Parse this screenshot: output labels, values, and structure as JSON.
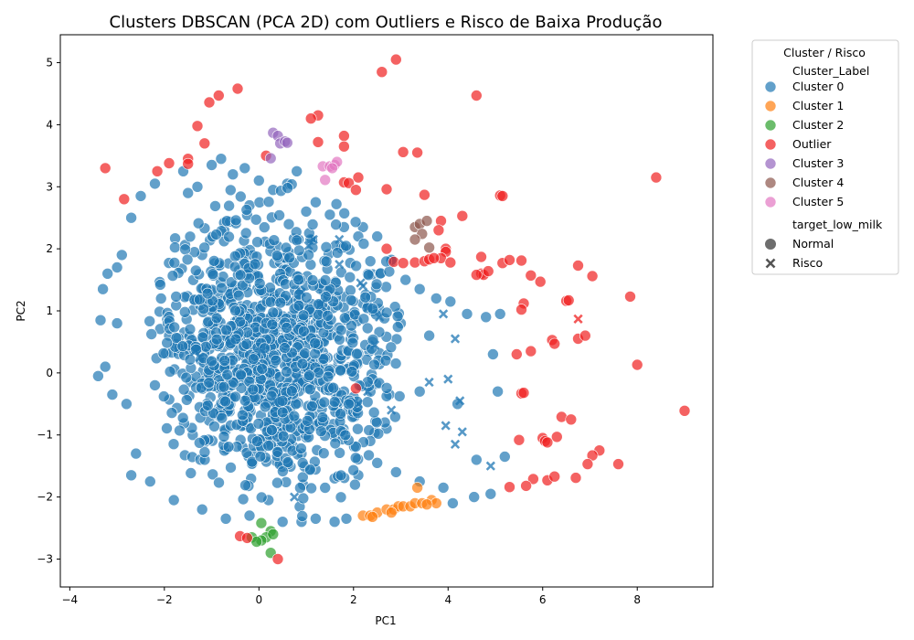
{
  "chart_data": {
    "type": "scatter",
    "title": "Clusters DBSCAN (PCA 2D) com Outliers e Risco de Baixa Produção",
    "xlabel": "PC1",
    "ylabel": "PC2",
    "xlim": [
      -4.2,
      9.6
    ],
    "ylim": [
      -3.45,
      5.45
    ],
    "xticks": [
      -4,
      -2,
      0,
      2,
      4,
      6,
      8
    ],
    "yticks": [
      -3,
      -2,
      -1,
      0,
      1,
      2,
      3,
      4,
      5
    ],
    "grid": false,
    "legend": {
      "placement": "outside-right",
      "title": "Cluster / Risco",
      "hue_title": "Cluster_Label",
      "style_title": "target_low_milk",
      "hue_entries": [
        {
          "label": "Cluster 0",
          "color": "#1f77b4"
        },
        {
          "label": "Cluster 1",
          "color": "#ff7f0e"
        },
        {
          "label": "Cluster 2",
          "color": "#2ca02c"
        },
        {
          "label": "Outlier",
          "color": "#ef1f1f"
        },
        {
          "label": "Cluster 3",
          "color": "#9467bd"
        },
        {
          "label": "Cluster 4",
          "color": "#8c564b"
        },
        {
          "label": "Cluster 5",
          "color": "#e377c2"
        }
      ],
      "style_entries": [
        {
          "label": "Normal",
          "marker": "circle"
        },
        {
          "label": "Risco",
          "marker": "x"
        }
      ]
    },
    "series": [
      {
        "name": "Cluster 0",
        "color": "#1f77b4",
        "region": {
          "x_center": 0.3,
          "y_center": 0.3,
          "x_spread": 2.0,
          "y_spread": 1.35
        },
        "points": [
          [
            -3.35,
            0.85
          ],
          [
            -3.4,
            -0.05
          ],
          [
            -3.2,
            1.6
          ],
          [
            -3.0,
            1.7
          ],
          [
            -2.7,
            2.5
          ],
          [
            -2.5,
            2.85
          ],
          [
            -2.2,
            3.05
          ],
          [
            -1.6,
            3.25
          ],
          [
            -1.3,
            3.0
          ],
          [
            -1.0,
            3.35
          ],
          [
            -0.8,
            3.45
          ],
          [
            -0.55,
            3.2
          ],
          [
            -0.3,
            3.3
          ],
          [
            0.0,
            3.1
          ],
          [
            0.3,
            2.95
          ],
          [
            0.6,
            3.05
          ],
          [
            0.8,
            3.25
          ],
          [
            1.2,
            2.75
          ],
          [
            1.5,
            2.55
          ],
          [
            1.8,
            2.35
          ],
          [
            2.2,
            2.35
          ],
          [
            2.5,
            2.2
          ],
          [
            2.8,
            1.8
          ],
          [
            3.1,
            1.5
          ],
          [
            3.4,
            1.35
          ],
          [
            3.75,
            1.2
          ],
          [
            4.05,
            1.15
          ],
          [
            4.4,
            0.95
          ],
          [
            4.8,
            0.9
          ],
          [
            5.1,
            0.95
          ],
          [
            4.95,
            0.3
          ],
          [
            5.05,
            -0.3
          ],
          [
            5.2,
            -1.35
          ],
          [
            4.9,
            -1.95
          ],
          [
            4.55,
            -2.0
          ],
          [
            4.1,
            -2.1
          ],
          [
            3.9,
            -1.85
          ],
          [
            3.4,
            -1.75
          ],
          [
            2.9,
            -1.6
          ],
          [
            2.5,
            -1.45
          ],
          [
            2.1,
            -1.65
          ],
          [
            1.85,
            -2.35
          ],
          [
            1.6,
            -2.4
          ],
          [
            1.2,
            -2.35
          ],
          [
            0.9,
            -2.4
          ],
          [
            0.5,
            -2.4
          ],
          [
            0.2,
            -2.05
          ],
          [
            -0.2,
            -2.3
          ],
          [
            -0.7,
            -2.35
          ],
          [
            -1.2,
            -2.2
          ],
          [
            -1.8,
            -2.05
          ],
          [
            -2.3,
            -1.75
          ],
          [
            -2.7,
            -1.65
          ],
          [
            -2.6,
            -1.3
          ],
          [
            -2.8,
            -0.5
          ],
          [
            -3.1,
            -0.35
          ],
          [
            -3.25,
            0.1
          ],
          [
            -3.0,
            0.8
          ],
          [
            -3.3,
            1.35
          ],
          [
            -2.9,
            1.9
          ],
          [
            -1.5,
            2.9
          ],
          [
            -0.2,
            2.7
          ],
          [
            1.0,
            2.6
          ],
          [
            2.1,
            2.2
          ],
          [
            3.6,
            0.6
          ],
          [
            3.0,
            0.8
          ],
          [
            2.4,
            0.5
          ],
          [
            1.8,
            -0.3
          ],
          [
            1.2,
            0.2
          ],
          [
            0.5,
            0.4
          ],
          [
            -0.1,
            0.9
          ],
          [
            -0.6,
            1.3
          ],
          [
            -1.2,
            1.9
          ],
          [
            -1.9,
            0.6
          ],
          [
            -2.2,
            -0.2
          ],
          [
            -1.4,
            -1.0
          ],
          [
            -0.7,
            -0.6
          ],
          [
            0.2,
            -0.9
          ],
          [
            0.9,
            -1.3
          ],
          [
            1.6,
            -1.7
          ],
          [
            2.7,
            -0.9
          ],
          [
            3.4,
            -0.3
          ],
          [
            4.2,
            -0.5
          ],
          [
            4.6,
            -1.4
          ]
        ]
      },
      {
        "name": "Cluster 1",
        "color": "#ff7f0e",
        "points": [
          [
            2.2,
            -2.3
          ],
          [
            2.35,
            -2.3
          ],
          [
            2.5,
            -2.25
          ],
          [
            2.7,
            -2.2
          ],
          [
            2.85,
            -2.2
          ],
          [
            2.95,
            -2.15
          ],
          [
            3.05,
            -2.15
          ],
          [
            3.2,
            -2.15
          ],
          [
            3.3,
            -2.1
          ],
          [
            3.45,
            -2.1
          ],
          [
            3.65,
            -2.05
          ],
          [
            3.75,
            -2.1
          ],
          [
            3.35,
            -1.85
          ],
          [
            2.8,
            -2.25
          ],
          [
            2.4,
            -2.32
          ],
          [
            3.55,
            -2.12
          ]
        ]
      },
      {
        "name": "Cluster 2",
        "color": "#2ca02c",
        "points": [
          [
            0.05,
            -2.42
          ],
          [
            0.25,
            -2.55
          ],
          [
            0.15,
            -2.65
          ],
          [
            0.05,
            -2.7
          ],
          [
            -0.15,
            -2.65
          ],
          [
            0.25,
            -2.9
          ],
          [
            -0.05,
            -2.72
          ],
          [
            0.3,
            -2.6
          ]
        ]
      },
      {
        "name": "Outlier",
        "color": "#ef1f1f",
        "points": [
          [
            2.9,
            5.05
          ],
          [
            2.6,
            4.85
          ],
          [
            -0.45,
            4.58
          ],
          [
            -0.85,
            4.47
          ],
          [
            -1.05,
            4.36
          ],
          [
            4.6,
            4.47
          ],
          [
            1.25,
            4.15
          ],
          [
            1.1,
            4.1
          ],
          [
            -1.3,
            3.98
          ],
          [
            1.8,
            3.82
          ],
          [
            1.8,
            3.65
          ],
          [
            1.25,
            3.72
          ],
          [
            -1.15,
            3.7
          ],
          [
            3.05,
            3.56
          ],
          [
            3.35,
            3.55
          ],
          [
            -1.5,
            3.45
          ],
          [
            -1.5,
            3.37
          ],
          [
            0.15,
            3.5
          ],
          [
            -1.9,
            3.38
          ],
          [
            -2.15,
            3.25
          ],
          [
            -3.25,
            3.3
          ],
          [
            2.1,
            3.15
          ],
          [
            1.8,
            3.07
          ],
          [
            1.9,
            3.06
          ],
          [
            2.05,
            2.95
          ],
          [
            2.7,
            2.96
          ],
          [
            3.5,
            2.87
          ],
          [
            4.3,
            2.53
          ],
          [
            8.4,
            3.15
          ],
          [
            5.1,
            2.86
          ],
          [
            5.15,
            2.85
          ],
          [
            -2.85,
            2.8
          ],
          [
            3.85,
            2.45
          ],
          [
            3.8,
            2.3
          ],
          [
            2.7,
            2.0
          ],
          [
            3.95,
            2.0
          ],
          [
            3.95,
            1.95
          ],
          [
            3.85,
            1.85
          ],
          [
            4.05,
            1.78
          ],
          [
            2.85,
            1.79
          ],
          [
            3.05,
            1.77
          ],
          [
            3.3,
            1.78
          ],
          [
            3.5,
            1.8
          ],
          [
            3.6,
            1.83
          ],
          [
            3.7,
            1.85
          ],
          [
            4.7,
            1.87
          ],
          [
            5.15,
            1.77
          ],
          [
            5.3,
            1.82
          ],
          [
            5.55,
            1.81
          ],
          [
            4.7,
            1.6
          ],
          [
            4.75,
            1.58
          ],
          [
            4.6,
            1.58
          ],
          [
            4.85,
            1.64
          ],
          [
            5.75,
            1.57
          ],
          [
            5.95,
            1.47
          ],
          [
            6.75,
            1.73
          ],
          [
            7.05,
            1.56
          ],
          [
            6.5,
            1.16
          ],
          [
            6.55,
            1.17
          ],
          [
            7.85,
            1.23
          ],
          [
            5.6,
            1.12
          ],
          [
            5.55,
            1.02
          ],
          [
            6.2,
            0.53
          ],
          [
            6.25,
            0.47
          ],
          [
            6.75,
            0.55
          ],
          [
            6.9,
            0.6
          ],
          [
            5.75,
            0.35
          ],
          [
            5.45,
            0.3
          ],
          [
            8.0,
            0.13
          ],
          [
            5.55,
            -0.33
          ],
          [
            5.6,
            -0.32
          ],
          [
            9.0,
            -0.61
          ],
          [
            6.4,
            -0.71
          ],
          [
            6.6,
            -0.75
          ],
          [
            5.5,
            -1.08
          ],
          [
            6.0,
            -1.05
          ],
          [
            6.05,
            -1.1
          ],
          [
            6.1,
            -1.12
          ],
          [
            6.3,
            -1.03
          ],
          [
            7.2,
            -1.25
          ],
          [
            7.05,
            -1.33
          ],
          [
            6.95,
            -1.47
          ],
          [
            7.6,
            -1.47
          ],
          [
            6.1,
            -1.73
          ],
          [
            6.25,
            -1.67
          ],
          [
            6.7,
            -1.69
          ],
          [
            5.8,
            -1.71
          ],
          [
            5.65,
            -1.82
          ],
          [
            5.3,
            -1.84
          ],
          [
            -0.4,
            -2.63
          ],
          [
            -0.25,
            -2.66
          ],
          [
            0.4,
            -3.0
          ],
          [
            2.05,
            -0.25
          ]
        ]
      },
      {
        "name": "Cluster 3",
        "color": "#9467bd",
        "points": [
          [
            0.3,
            3.87
          ],
          [
            0.4,
            3.82
          ],
          [
            0.45,
            3.7
          ],
          [
            0.55,
            3.73
          ],
          [
            0.6,
            3.71
          ],
          [
            0.25,
            3.46
          ]
        ]
      },
      {
        "name": "Cluster 4",
        "color": "#8c564b",
        "points": [
          [
            3.3,
            2.35
          ],
          [
            3.4,
            2.4
          ],
          [
            3.55,
            2.45
          ],
          [
            3.45,
            2.24
          ],
          [
            3.3,
            2.15
          ],
          [
            3.6,
            2.02
          ]
        ]
      },
      {
        "name": "Cluster 5",
        "color": "#e377c2",
        "points": [
          [
            1.35,
            3.33
          ],
          [
            1.5,
            3.33
          ],
          [
            1.6,
            3.35
          ],
          [
            1.65,
            3.4
          ],
          [
            1.55,
            3.3
          ],
          [
            1.4,
            3.11
          ]
        ]
      }
    ],
    "risk_points": [
      [
        1.15,
        2.15
      ],
      [
        1.7,
        2.15
      ],
      [
        1.05,
        2.05
      ],
      [
        1.7,
        1.75
      ],
      [
        2.3,
        1.05
      ],
      [
        2.55,
        0.9
      ],
      [
        2.45,
        0.45
      ],
      [
        0.9,
        1.3
      ],
      [
        3.9,
        0.95
      ],
      [
        4.15,
        0.55
      ],
      [
        4.0,
        -0.1
      ],
      [
        4.25,
        -0.45
      ],
      [
        3.95,
        -0.85
      ],
      [
        4.3,
        -0.95
      ],
      [
        4.15,
        -1.15
      ],
      [
        4.9,
        -1.5
      ],
      [
        2.3,
        -0.3
      ],
      [
        2.1,
        -0.5
      ],
      [
        2.8,
        -0.6
      ],
      [
        0.35,
        -0.45
      ],
      [
        -1.35,
        0.35
      ],
      [
        -1.25,
        0.25
      ],
      [
        -0.6,
        0.5
      ],
      [
        0.8,
        -0.1
      ],
      [
        0.75,
        -2.0
      ],
      [
        1.3,
        1.1
      ],
      [
        0.05,
        0.35
      ],
      [
        2.15,
        1.45
      ],
      [
        2.2,
        1.4
      ],
      [
        6.75,
        0.87
      ],
      [
        3.6,
        -0.15
      ]
    ]
  }
}
